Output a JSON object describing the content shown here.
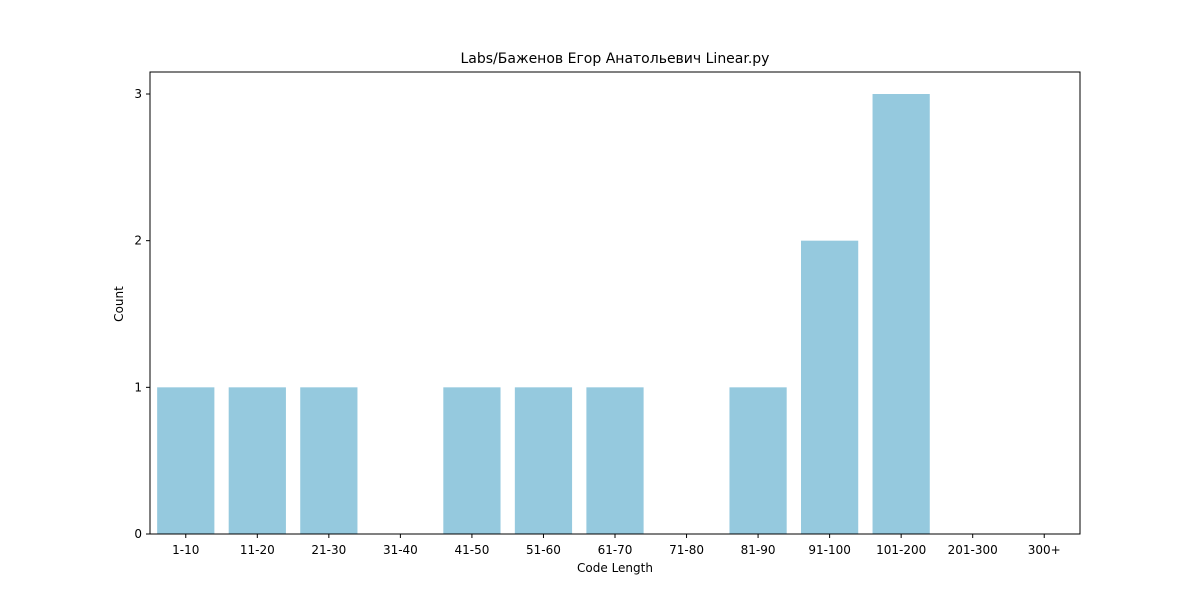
{
  "chart_data": {
    "type": "bar",
    "title": "Labs/Баженов Егор Анатольевич Linear.py",
    "xlabel": "Code Length",
    "ylabel": "Count",
    "categories": [
      "1-10",
      "11-20",
      "21-30",
      "31-40",
      "41-50",
      "51-60",
      "61-70",
      "71-80",
      "81-90",
      "91-100",
      "101-200",
      "201-300",
      "300+"
    ],
    "values": [
      1,
      1,
      1,
      0,
      1,
      1,
      1,
      0,
      1,
      2,
      3,
      0,
      0
    ],
    "ylim": [
      0,
      3.15
    ],
    "yticks": [
      0,
      1,
      2,
      3
    ],
    "grid": false,
    "colors": {
      "bar": "#95c9de",
      "axis": "#000000"
    }
  }
}
